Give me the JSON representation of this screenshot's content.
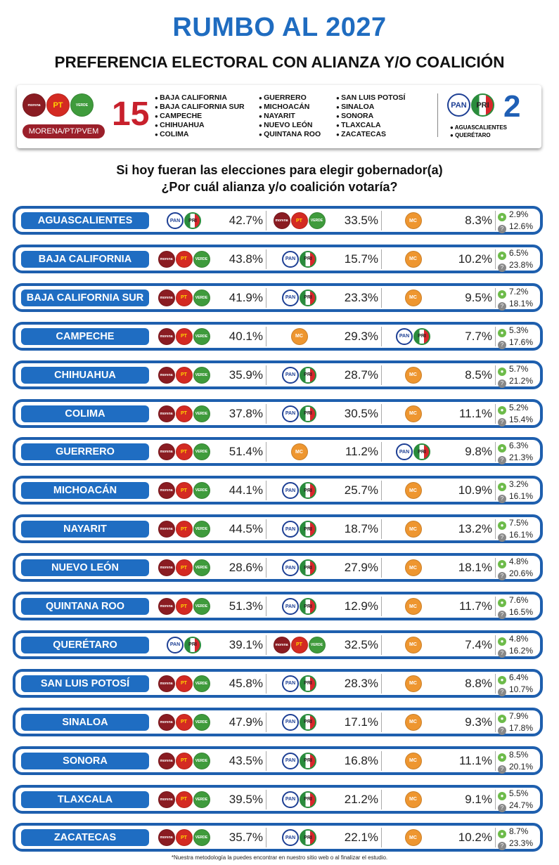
{
  "header": {
    "title": "RUMBO AL 2027",
    "subtitle": "PREFERENCIA ELECTORAL CON ALIANZA Y/O COALICIÓN"
  },
  "logos": {
    "morena": "morena",
    "pt": "PT",
    "verde": "VERDE",
    "pan": "PAN",
    "pri": "PRI",
    "mc": "MC"
  },
  "summary": {
    "mpv_label": "MORENA/PT/PVEM",
    "mpv_count": "15",
    "mpv_states": [
      [
        "BAJA CALIFORNIA",
        "BAJA CALIFORNIA SUR",
        "CAMPECHE",
        "CHIHUAHUA",
        "COLIMA"
      ],
      [
        "GUERRERO",
        "MICHOACÁN",
        "NAYARIT",
        "NUEVO LEÓN",
        "QUINTANA ROO"
      ],
      [
        "SAN LUIS POTOSÍ",
        "SINALOA",
        "SONORA",
        "TLAXCALA",
        "ZACATECAS"
      ]
    ],
    "panpri_count": "2",
    "panpri_states": [
      "AGUASCALIENTES",
      "QUERÉTARO"
    ]
  },
  "question": [
    "Si hoy fueran las elecciones para elegir gobernador(a)",
    "¿Por cuál alianza y/o coalición votaría?"
  ],
  "rows": [
    {
      "state": "AGUASCALIENTES",
      "r": [
        [
          "panpri",
          "42.7%"
        ],
        [
          "mpv",
          "33.5%"
        ],
        [
          "mc",
          "8.3%"
        ]
      ],
      "other": "2.9%",
      "undecided": "12.6%"
    },
    {
      "state": "BAJA CALIFORNIA",
      "r": [
        [
          "mpv",
          "43.8%"
        ],
        [
          "panpri",
          "15.7%"
        ],
        [
          "mc",
          "10.2%"
        ]
      ],
      "other": "6.5%",
      "undecided": "23.8%"
    },
    {
      "state": "BAJA CALIFORNIA SUR",
      "r": [
        [
          "mpv",
          "41.9%"
        ],
        [
          "panpri",
          "23.3%"
        ],
        [
          "mc",
          "9.5%"
        ]
      ],
      "other": "7.2%",
      "undecided": "18.1%"
    },
    {
      "state": "CAMPECHE",
      "r": [
        [
          "mpv",
          "40.1%"
        ],
        [
          "mc",
          "29.3%"
        ],
        [
          "panpri",
          "7.7%"
        ]
      ],
      "other": "5.3%",
      "undecided": "17.6%"
    },
    {
      "state": "CHIHUAHUA",
      "r": [
        [
          "mpv",
          "35.9%"
        ],
        [
          "panpri",
          "28.7%"
        ],
        [
          "mc",
          "8.5%"
        ]
      ],
      "other": "5.7%",
      "undecided": "21.2%"
    },
    {
      "state": "COLIMA",
      "r": [
        [
          "mpv",
          "37.8%"
        ],
        [
          "panpri",
          "30.5%"
        ],
        [
          "mc",
          "11.1%"
        ]
      ],
      "other": "5.2%",
      "undecided": "15.4%"
    },
    {
      "state": "GUERRERO",
      "r": [
        [
          "mpv",
          "51.4%"
        ],
        [
          "mc",
          "11.2%"
        ],
        [
          "panpri",
          "9.8%"
        ]
      ],
      "other": "6.3%",
      "undecided": "21.3%"
    },
    {
      "state": "MICHOACÁN",
      "r": [
        [
          "mpv",
          "44.1%"
        ],
        [
          "panpri",
          "25.7%"
        ],
        [
          "mc",
          "10.9%"
        ]
      ],
      "other": "3.2%",
      "undecided": "16.1%"
    },
    {
      "state": "NAYARIT",
      "r": [
        [
          "mpv",
          "44.5%"
        ],
        [
          "panpri",
          "18.7%"
        ],
        [
          "mc",
          "13.2%"
        ]
      ],
      "other": "7.5%",
      "undecided": "16.1%"
    },
    {
      "state": "NUEVO LEÓN",
      "r": [
        [
          "mpv",
          "28.6%"
        ],
        [
          "panpri",
          "27.9%"
        ],
        [
          "mc",
          "18.1%"
        ]
      ],
      "other": "4.8%",
      "undecided": "20.6%"
    },
    {
      "state": "QUINTANA ROO",
      "r": [
        [
          "mpv",
          "51.3%"
        ],
        [
          "panpri",
          "12.9%"
        ],
        [
          "mc",
          "11.7%"
        ]
      ],
      "other": "7.6%",
      "undecided": "16.5%"
    },
    {
      "state": "QUERÉTARO",
      "r": [
        [
          "panpri",
          "39.1%"
        ],
        [
          "mpv",
          "32.5%"
        ],
        [
          "mc",
          "7.4%"
        ]
      ],
      "other": "4.8%",
      "undecided": "16.2%"
    },
    {
      "state": "SAN LUIS POTOSÍ",
      "r": [
        [
          "mpv",
          "45.8%"
        ],
        [
          "panpri",
          "28.3%"
        ],
        [
          "mc",
          "8.8%"
        ]
      ],
      "other": "6.4%",
      "undecided": "10.7%"
    },
    {
      "state": "SINALOA",
      "r": [
        [
          "mpv",
          "47.9%"
        ],
        [
          "panpri",
          "17.1%"
        ],
        [
          "mc",
          "9.3%"
        ]
      ],
      "other": "7.9%",
      "undecided": "17.8%"
    },
    {
      "state": "SONORA",
      "r": [
        [
          "mpv",
          "43.5%"
        ],
        [
          "panpri",
          "16.8%"
        ],
        [
          "mc",
          "11.1%"
        ]
      ],
      "other": "8.5%",
      "undecided": "20.1%"
    },
    {
      "state": "TLAXCALA",
      "r": [
        [
          "mpv",
          "39.5%"
        ],
        [
          "panpri",
          "21.2%"
        ],
        [
          "mc",
          "9.1%"
        ]
      ],
      "other": "5.5%",
      "undecided": "24.7%"
    },
    {
      "state": "ZACATECAS",
      "r": [
        [
          "mpv",
          "35.7%"
        ],
        [
          "panpri",
          "22.1%"
        ],
        [
          "mc",
          "10.2%"
        ]
      ],
      "other": "8.7%",
      "undecided": "23.3%"
    }
  ],
  "footer": "*Nuestra metodología la puedes encontrar en nuestro sitio web o al finalizar el estudio.",
  "colors": {
    "blue": "#1f6dc2",
    "red": "#c8202c"
  }
}
